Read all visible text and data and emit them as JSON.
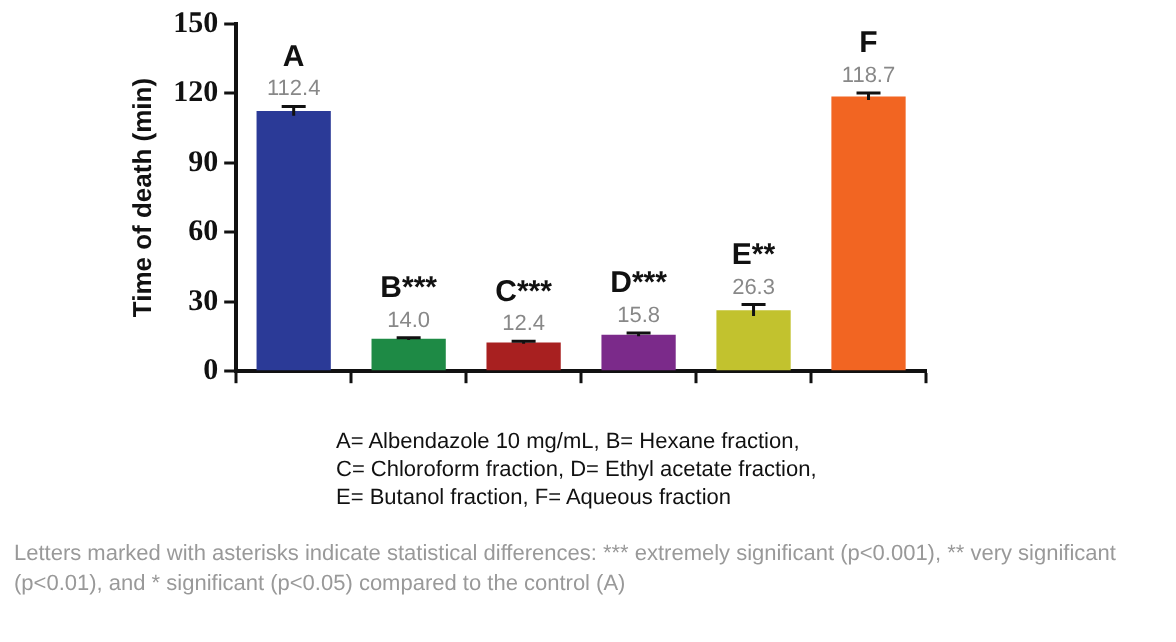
{
  "chart_data": {
    "type": "bar",
    "ylabel": "Time of death (min)",
    "categories": [
      "A",
      "B***",
      "C***",
      "D***",
      "E**",
      "F"
    ],
    "values": [
      112.4,
      14.0,
      12.4,
      15.8,
      26.3,
      118.7
    ],
    "colors": [
      "#2b3a97",
      "#1e8a45",
      "#a82020",
      "#7b2a8a",
      "#c2c22e",
      "#f26522"
    ],
    "errors": [
      2,
      0.5,
      0.5,
      0.7,
      2.5,
      1.5
    ],
    "ylim": [
      0,
      150
    ],
    "yticks": [
      0,
      30,
      60,
      90,
      120,
      150
    ],
    "value_labels": [
      "112.4",
      "14.0",
      "12.4",
      "15.8",
      "26.3",
      "118.7"
    ],
    "grid": false,
    "legend": false,
    "annotations": [
      "A= Albendazole 10 mg/mL, B= Hexane fraction,",
      "C= Chloroform fraction, D= Ethyl acetate fraction,",
      "E= Butanol fraction, F= Aqueous fraction",
      "Letters marked with asterisks indicate statistical differences: *** extremely significant (p<0.001), ** very significant (p<0.01), and * significant (p<0.05) compared to the control (A)"
    ]
  }
}
